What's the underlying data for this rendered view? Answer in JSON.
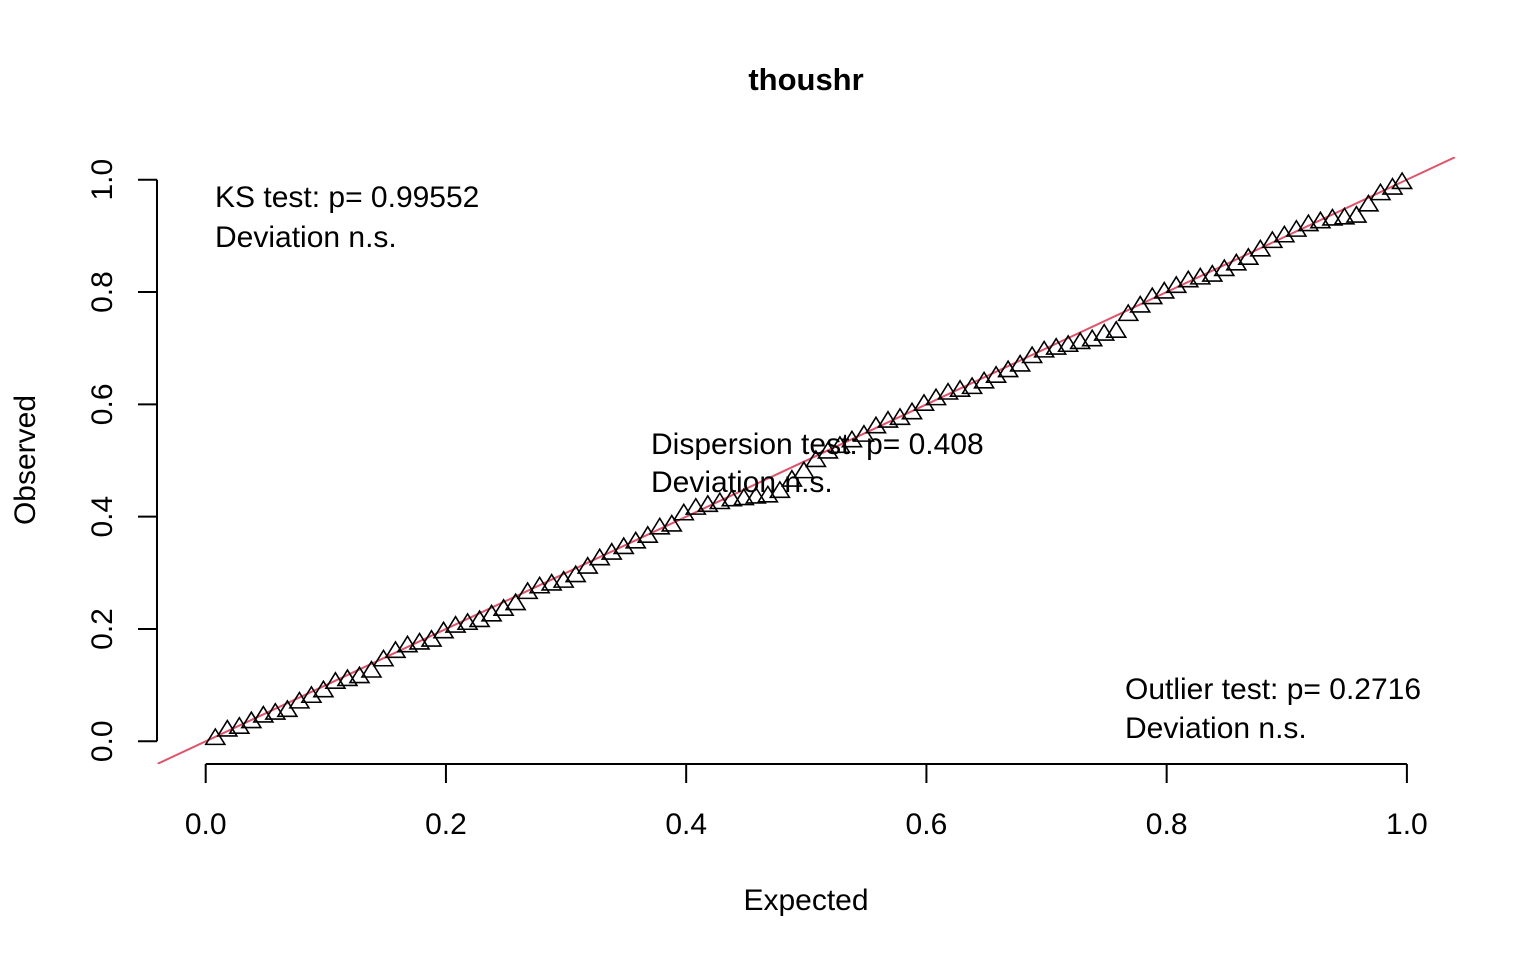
{
  "chart_data": {
    "type": "scatter",
    "title": "thoushr",
    "xlabel": "Expected",
    "ylabel": "Observed",
    "xlim": [
      -0.04,
      1.04
    ],
    "ylim": [
      -0.04,
      1.04
    ],
    "x_ticks": [
      "0.0",
      "0.2",
      "0.4",
      "0.6",
      "0.8",
      "1.0"
    ],
    "y_ticks": [
      "0.0",
      "0.2",
      "0.4",
      "0.6",
      "0.8",
      "1.0"
    ],
    "grid": false,
    "legend": "none",
    "reference_line": {
      "intercept": 0,
      "slope": 1,
      "color": "#DF536B"
    },
    "marker": "open-triangle",
    "marker_color": "#000000",
    "annotations": [
      {
        "name": "ks",
        "lines": [
          "KS test: p= 0.99552",
          "Deviation  n.s."
        ]
      },
      {
        "name": "dispersion",
        "lines": [
          "Dispersion test: p= 0.408",
          "Deviation  n.s."
        ]
      },
      {
        "name": "outlier",
        "lines": [
          "Outlier test: p= 0.2716",
          "Deviation  n.s."
        ]
      }
    ],
    "series": [
      {
        "points": [
          [
            0.008,
            0.005
          ],
          [
            0.018,
            0.02
          ],
          [
            0.028,
            0.025
          ],
          [
            0.038,
            0.035
          ],
          [
            0.048,
            0.045
          ],
          [
            0.058,
            0.05
          ],
          [
            0.068,
            0.055
          ],
          [
            0.078,
            0.07
          ],
          [
            0.088,
            0.08
          ],
          [
            0.098,
            0.09
          ],
          [
            0.108,
            0.105
          ],
          [
            0.118,
            0.11
          ],
          [
            0.128,
            0.115
          ],
          [
            0.138,
            0.125
          ],
          [
            0.148,
            0.145
          ],
          [
            0.158,
            0.16
          ],
          [
            0.168,
            0.17
          ],
          [
            0.178,
            0.175
          ],
          [
            0.188,
            0.18
          ],
          [
            0.198,
            0.195
          ],
          [
            0.208,
            0.205
          ],
          [
            0.218,
            0.21
          ],
          [
            0.228,
            0.215
          ],
          [
            0.238,
            0.225
          ],
          [
            0.248,
            0.235
          ],
          [
            0.258,
            0.245
          ],
          [
            0.268,
            0.265
          ],
          [
            0.278,
            0.275
          ],
          [
            0.288,
            0.28
          ],
          [
            0.298,
            0.285
          ],
          [
            0.308,
            0.295
          ],
          [
            0.318,
            0.31
          ],
          [
            0.328,
            0.325
          ],
          [
            0.338,
            0.335
          ],
          [
            0.348,
            0.345
          ],
          [
            0.358,
            0.355
          ],
          [
            0.368,
            0.365
          ],
          [
            0.378,
            0.38
          ],
          [
            0.388,
            0.385
          ],
          [
            0.398,
            0.405
          ],
          [
            0.408,
            0.415
          ],
          [
            0.418,
            0.42
          ],
          [
            0.428,
            0.425
          ],
          [
            0.438,
            0.43
          ],
          [
            0.448,
            0.432
          ],
          [
            0.458,
            0.435
          ],
          [
            0.468,
            0.437
          ],
          [
            0.478,
            0.445
          ],
          [
            0.488,
            0.465
          ],
          [
            0.498,
            0.48
          ],
          [
            0.508,
            0.5
          ],
          [
            0.518,
            0.515
          ],
          [
            0.528,
            0.525
          ],
          [
            0.538,
            0.535
          ],
          [
            0.548,
            0.545
          ],
          [
            0.558,
            0.56
          ],
          [
            0.568,
            0.57
          ],
          [
            0.578,
            0.575
          ],
          [
            0.588,
            0.585
          ],
          [
            0.598,
            0.6
          ],
          [
            0.608,
            0.61
          ],
          [
            0.618,
            0.62
          ],
          [
            0.628,
            0.625
          ],
          [
            0.638,
            0.63
          ],
          [
            0.648,
            0.64
          ],
          [
            0.658,
            0.65
          ],
          [
            0.668,
            0.66
          ],
          [
            0.678,
            0.67
          ],
          [
            0.688,
            0.685
          ],
          [
            0.698,
            0.695
          ],
          [
            0.708,
            0.7
          ],
          [
            0.718,
            0.705
          ],
          [
            0.728,
            0.71
          ],
          [
            0.738,
            0.715
          ],
          [
            0.748,
            0.725
          ],
          [
            0.758,
            0.73
          ],
          [
            0.768,
            0.76
          ],
          [
            0.778,
            0.775
          ],
          [
            0.788,
            0.79
          ],
          [
            0.798,
            0.8
          ],
          [
            0.808,
            0.81
          ],
          [
            0.818,
            0.82
          ],
          [
            0.828,
            0.825
          ],
          [
            0.838,
            0.83
          ],
          [
            0.848,
            0.84
          ],
          [
            0.858,
            0.85
          ],
          [
            0.868,
            0.86
          ],
          [
            0.878,
            0.875
          ],
          [
            0.888,
            0.89
          ],
          [
            0.898,
            0.9
          ],
          [
            0.908,
            0.91
          ],
          [
            0.918,
            0.92
          ],
          [
            0.928,
            0.925
          ],
          [
            0.938,
            0.93
          ],
          [
            0.948,
            0.932
          ],
          [
            0.958,
            0.935
          ],
          [
            0.968,
            0.955
          ],
          [
            0.978,
            0.975
          ],
          [
            0.988,
            0.985
          ],
          [
            0.996,
            0.995
          ]
        ]
      }
    ]
  }
}
